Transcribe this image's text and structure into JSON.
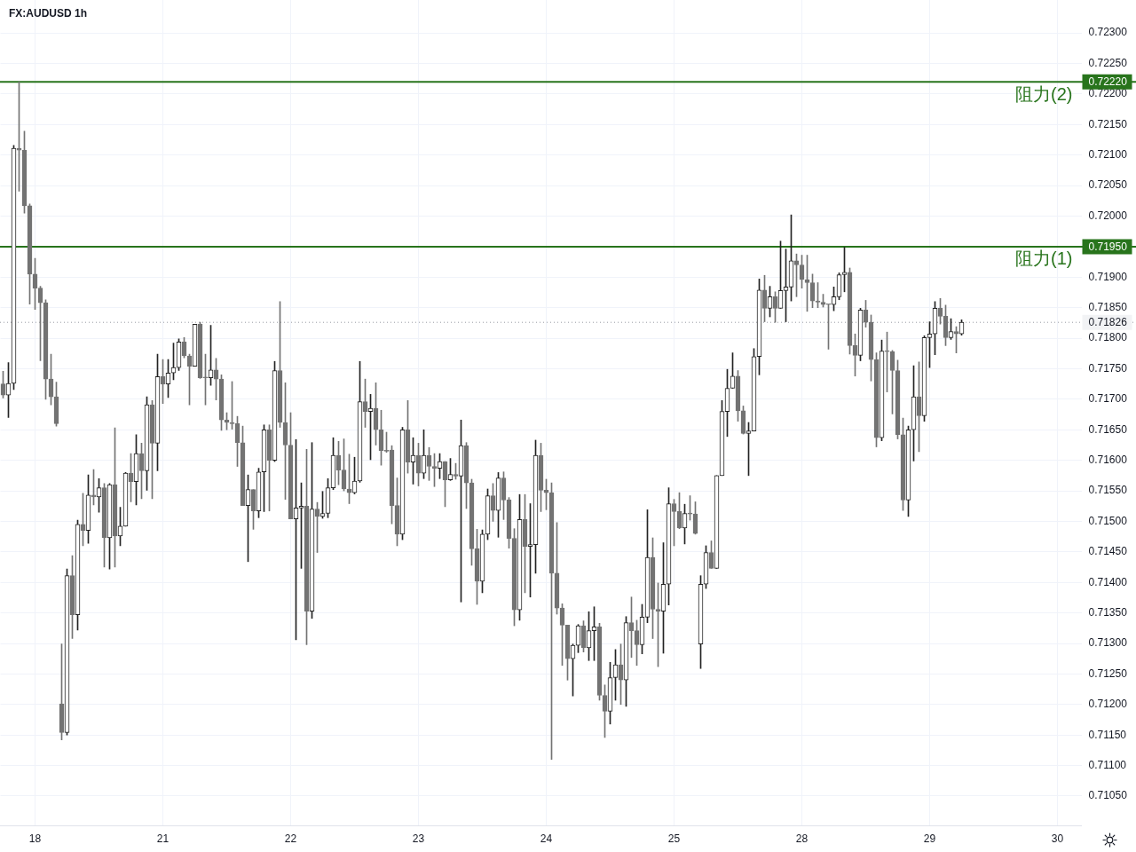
{
  "chart_data": {
    "type": "candlestick",
    "title": "FX:AUDUSD 1h",
    "categories": [
      null,
      null,
      null,
      null,
      null,
      null,
      "18",
      null,
      null,
      null,
      null,
      null,
      null,
      null,
      null,
      null,
      null,
      null,
      null,
      null,
      null,
      null,
      null,
      null,
      null,
      null,
      null,
      null,
      null,
      null,
      "21",
      null,
      null,
      null,
      null,
      null,
      null,
      null,
      null,
      null,
      null,
      null,
      null,
      null,
      null,
      null,
      null,
      null,
      null,
      null,
      null,
      null,
      null,
      null,
      "22",
      null,
      null,
      null,
      null,
      null,
      null,
      null,
      null,
      null,
      null,
      null,
      null,
      null,
      null,
      null,
      null,
      null,
      null,
      null,
      null,
      null,
      null,
      null,
      "23",
      null,
      null,
      null,
      null,
      null,
      null,
      null,
      null,
      null,
      null,
      null,
      null,
      null,
      null,
      null,
      null,
      null,
      null,
      null,
      null,
      null,
      null,
      null,
      "24",
      null,
      null,
      null,
      null,
      null,
      null,
      null,
      null,
      null,
      null,
      null,
      null,
      null,
      null,
      null,
      null,
      null,
      null,
      null,
      null,
      null,
      null,
      null,
      "25",
      null,
      null,
      null,
      null,
      null,
      null,
      null,
      null,
      null,
      null,
      null,
      null,
      null,
      null,
      null,
      null,
      null,
      null,
      null,
      null,
      null,
      null,
      null,
      "28",
      null,
      null,
      null,
      null,
      null,
      null,
      null,
      null,
      null,
      null,
      null,
      null,
      null,
      null,
      null,
      null,
      null,
      null,
      null,
      null,
      null,
      null,
      null,
      "29",
      null,
      null,
      null,
      null,
      null,
      null,
      null,
      null,
      null,
      null,
      null,
      null,
      null,
      null,
      null,
      null,
      null,
      null,
      null,
      null,
      null,
      null,
      null,
      "30",
      null,
      null,
      null,
      null
    ],
    "ohlc": [
      [
        0.71725,
        0.71746,
        0.71702,
        0.71707
      ],
      [
        0.71707,
        0.7176,
        0.7167,
        0.71726
      ],
      [
        0.71726,
        0.72116,
        0.71716,
        0.72111
      ],
      [
        0.72111,
        0.7222,
        0.72041,
        0.72108
      ],
      [
        0.72108,
        0.72139,
        0.72005,
        0.72017
      ],
      [
        0.72017,
        0.7202,
        0.71856,
        0.71905
      ],
      [
        0.71905,
        0.71931,
        0.71847,
        0.71882
      ],
      [
        0.71882,
        0.71885,
        0.71763,
        0.71858
      ],
      [
        0.71858,
        0.71863,
        0.717,
        0.71733
      ],
      [
        0.71733,
        0.71774,
        0.71691,
        0.71704
      ],
      [
        0.71704,
        0.71728,
        0.71656,
        0.7166
      ],
      [
        0.71201,
        0.71299,
        0.71142,
        0.71154
      ],
      [
        0.71154,
        0.71422,
        0.7115,
        0.71411
      ],
      [
        0.71411,
        0.71444,
        0.71308,
        0.71347
      ],
      [
        0.71347,
        0.71502,
        0.71322,
        0.71495
      ],
      [
        0.71495,
        0.71546,
        0.7146,
        0.71485
      ],
      [
        0.71485,
        0.71576,
        0.71464,
        0.71543
      ],
      [
        0.71543,
        0.71585,
        0.71527,
        0.7154
      ],
      [
        0.7154,
        0.7157,
        0.71515,
        0.71555
      ],
      [
        0.71555,
        0.71562,
        0.71425,
        0.71473
      ],
      [
        0.71473,
        0.71562,
        0.71422,
        0.7156
      ],
      [
        0.7156,
        0.71653,
        0.71425,
        0.71476
      ],
      [
        0.71476,
        0.71523,
        0.7146,
        0.71492
      ],
      [
        0.71492,
        0.7158,
        0.71492,
        0.71579
      ],
      [
        0.71579,
        0.71611,
        0.71532,
        0.71565
      ],
      [
        0.71565,
        0.71642,
        0.71527,
        0.71611
      ],
      [
        0.71611,
        0.71628,
        0.71537,
        0.71583
      ],
      [
        0.71583,
        0.71704,
        0.71551,
        0.71691
      ],
      [
        0.71691,
        0.71698,
        0.71537,
        0.71628
      ],
      [
        0.71628,
        0.71774,
        0.71583,
        0.71737
      ],
      [
        0.71737,
        0.71765,
        0.71693,
        0.71725
      ],
      [
        0.71725,
        0.71765,
        0.71703,
        0.71743
      ],
      [
        0.71743,
        0.71792,
        0.71732,
        0.71752
      ],
      [
        0.71752,
        0.71799,
        0.71747,
        0.71794
      ],
      [
        0.71794,
        0.71801,
        0.71768,
        0.71771
      ],
      [
        0.71771,
        0.71774,
        0.71691,
        0.71754
      ],
      [
        0.71754,
        0.71823,
        0.71754,
        0.71823
      ],
      [
        0.71823,
        0.71826,
        0.71734,
        0.71735
      ],
      [
        0.71735,
        0.71774,
        0.71691,
        0.71735
      ],
      [
        0.71735,
        0.71821,
        0.71723,
        0.71748
      ],
      [
        0.71748,
        0.71767,
        0.71699,
        0.71733
      ],
      [
        0.71733,
        0.7174,
        0.71649,
        0.71666
      ],
      [
        0.71666,
        0.71678,
        0.7165,
        0.71662
      ],
      [
        0.71662,
        0.71729,
        0.71651,
        0.7166
      ],
      [
        0.7166,
        0.71672,
        0.7159,
        0.71629
      ],
      [
        0.71629,
        0.71656,
        0.71526,
        0.71526
      ],
      [
        0.71526,
        0.71576,
        0.71434,
        0.71552
      ],
      [
        0.71552,
        0.71552,
        0.71487,
        0.71517
      ],
      [
        0.71517,
        0.71587,
        0.71506,
        0.71581
      ],
      [
        0.71581,
        0.71658,
        0.71516,
        0.7165
      ],
      [
        0.7165,
        0.71658,
        0.71517,
        0.716
      ],
      [
        0.716,
        0.71762,
        0.71598,
        0.71747
      ],
      [
        0.71747,
        0.7186,
        0.71654,
        0.71662
      ],
      [
        0.71662,
        0.71727,
        0.71536,
        0.71625
      ],
      [
        0.71625,
        0.71678,
        0.71504,
        0.71504
      ],
      [
        0.71504,
        0.71634,
        0.71306,
        0.71522
      ],
      [
        0.71522,
        0.71563,
        0.71423,
        0.71525
      ],
      [
        0.71525,
        0.71618,
        0.71298,
        0.71353
      ],
      [
        0.71353,
        0.71629,
        0.71341,
        0.7152
      ],
      [
        0.7152,
        0.71531,
        0.71449,
        0.71508
      ],
      [
        0.71508,
        0.71549,
        0.71505,
        0.71513
      ],
      [
        0.71513,
        0.7157,
        0.71506,
        0.71555
      ],
      [
        0.71555,
        0.71637,
        0.71552,
        0.71608
      ],
      [
        0.71608,
        0.71631,
        0.7156,
        0.71584
      ],
      [
        0.71584,
        0.71635,
        0.7155,
        0.71553
      ],
      [
        0.71553,
        0.7161,
        0.71529,
        0.71547
      ],
      [
        0.71547,
        0.71605,
        0.71545,
        0.71566
      ],
      [
        0.71566,
        0.71762,
        0.71564,
        0.71696
      ],
      [
        0.71696,
        0.71733,
        0.71654,
        0.7168
      ],
      [
        0.7168,
        0.71708,
        0.71601,
        0.71685
      ],
      [
        0.71685,
        0.71727,
        0.71625,
        0.7165
      ],
      [
        0.7165,
        0.71682,
        0.71592,
        0.71616
      ],
      [
        0.71616,
        0.71646,
        0.71613,
        0.71615
      ],
      [
        0.71617,
        0.71624,
        0.71496,
        0.71526
      ],
      [
        0.71526,
        0.71571,
        0.7146,
        0.71479
      ],
      [
        0.71479,
        0.71654,
        0.7147,
        0.7165
      ],
      [
        0.7165,
        0.71698,
        0.71579,
        0.71597
      ],
      [
        0.71597,
        0.71637,
        0.71561,
        0.71608
      ],
      [
        0.71608,
        0.71628,
        0.71558,
        0.71579
      ],
      [
        0.71579,
        0.7165,
        0.7157,
        0.71608
      ],
      [
        0.71608,
        0.71621,
        0.71567,
        0.7159
      ],
      [
        0.7159,
        0.71611,
        0.71557,
        0.71587
      ],
      [
        0.71587,
        0.71611,
        0.7157,
        0.71598
      ],
      [
        0.71598,
        0.71598,
        0.71524,
        0.71568
      ],
      [
        0.71568,
        0.71603,
        0.71567,
        0.71577
      ],
      [
        0.71577,
        0.71595,
        0.71569,
        0.71574
      ],
      [
        0.71574,
        0.71666,
        0.71368,
        0.71624
      ],
      [
        0.71624,
        0.71629,
        0.71521,
        0.71563
      ],
      [
        0.71563,
        0.71569,
        0.71428,
        0.71455
      ],
      [
        0.71455,
        0.71487,
        0.71364,
        0.71402
      ],
      [
        0.71402,
        0.71486,
        0.71383,
        0.71479
      ],
      [
        0.71479,
        0.71553,
        0.7147,
        0.71542
      ],
      [
        0.71542,
        0.71562,
        0.715,
        0.71518
      ],
      [
        0.71518,
        0.7158,
        0.71474,
        0.71571
      ],
      [
        0.71571,
        0.71581,
        0.71503,
        0.71535
      ],
      [
        0.71535,
        0.71539,
        0.71456,
        0.71472
      ],
      [
        0.71472,
        0.71488,
        0.71329,
        0.71355
      ],
      [
        0.71355,
        0.71544,
        0.71338,
        0.71503
      ],
      [
        0.71503,
        0.71544,
        0.71383,
        0.71459
      ],
      [
        0.71459,
        0.71529,
        0.71376,
        0.71462
      ],
      [
        0.71462,
        0.71633,
        0.71415,
        0.71608
      ],
      [
        0.71608,
        0.71628,
        0.71516,
        0.71551
      ],
      [
        0.71551,
        0.71569,
        0.71519,
        0.71547
      ],
      [
        0.71547,
        0.71563,
        0.7111,
        0.71415
      ],
      [
        0.71415,
        0.71498,
        0.71348,
        0.71358
      ],
      [
        0.71358,
        0.71365,
        0.71264,
        0.7133
      ],
      [
        0.7133,
        0.7133,
        0.7124,
        0.71275
      ],
      [
        0.71275,
        0.71299,
        0.71214,
        0.71297
      ],
      [
        0.71297,
        0.71331,
        0.71285,
        0.71329
      ],
      [
        0.71329,
        0.71337,
        0.71286,
        0.71293
      ],
      [
        0.71293,
        0.71352,
        0.71272,
        0.71321
      ],
      [
        0.71321,
        0.7136,
        0.71272,
        0.71327
      ],
      [
        0.71327,
        0.71333,
        0.71207,
        0.71215
      ],
      [
        0.71215,
        0.71232,
        0.71146,
        0.71189
      ],
      [
        0.71189,
        0.71269,
        0.71168,
        0.71244
      ],
      [
        0.71244,
        0.7129,
        0.71207,
        0.71265
      ],
      [
        0.71265,
        0.71299,
        0.712,
        0.7124
      ],
      [
        0.7124,
        0.71344,
        0.71197,
        0.71334
      ],
      [
        0.71334,
        0.71376,
        0.71277,
        0.71321
      ],
      [
        0.71321,
        0.71338,
        0.71264,
        0.71298
      ],
      [
        0.71298,
        0.71364,
        0.71283,
        0.71343
      ],
      [
        0.71343,
        0.71519,
        0.71334,
        0.71441
      ],
      [
        0.71441,
        0.71473,
        0.71308,
        0.71356
      ],
      [
        0.71356,
        0.71399,
        0.71262,
        0.71353
      ],
      [
        0.71353,
        0.71465,
        0.71284,
        0.71397
      ],
      [
        0.71397,
        0.71555,
        0.71363,
        0.71529
      ],
      [
        0.71529,
        0.71536,
        0.7146,
        0.71516
      ],
      [
        0.71516,
        0.71547,
        0.71488,
        0.71489
      ],
      [
        0.71489,
        0.71528,
        0.71463,
        0.71513
      ],
      [
        0.71513,
        0.71542,
        0.71502,
        0.71512
      ],
      [
        0.71512,
        0.71532,
        0.71479,
        0.7148
      ],
      [
        0.71299,
        0.71411,
        0.71259,
        0.71397
      ],
      [
        0.71397,
        0.7146,
        0.7139,
        0.71449
      ],
      [
        0.71449,
        0.71468,
        0.71423,
        0.71423
      ],
      [
        0.71423,
        0.71575,
        0.71423,
        0.71575
      ],
      [
        0.71575,
        0.71698,
        0.71575,
        0.7168
      ],
      [
        0.7168,
        0.71749,
        0.71639,
        0.71718
      ],
      [
        0.71718,
        0.71776,
        0.71718,
        0.71738
      ],
      [
        0.71738,
        0.71747,
        0.71664,
        0.71681
      ],
      [
        0.71681,
        0.71689,
        0.71643,
        0.71644
      ],
      [
        0.71644,
        0.71662,
        0.71575,
        0.71648
      ],
      [
        0.71648,
        0.71783,
        0.71648,
        0.7177
      ],
      [
        0.7177,
        0.71897,
        0.7174,
        0.71879
      ],
      [
        0.71879,
        0.71903,
        0.71827,
        0.71849
      ],
      [
        0.71849,
        0.71885,
        0.71835,
        0.71868
      ],
      [
        0.71868,
        0.71876,
        0.71826,
        0.71849
      ],
      [
        0.71849,
        0.71959,
        0.71849,
        0.71878
      ],
      [
        0.71878,
        0.71946,
        0.71827,
        0.71884
      ],
      [
        0.71884,
        0.72002,
        0.71861,
        0.71927
      ],
      [
        0.71927,
        0.71938,
        0.71868,
        0.7192
      ],
      [
        0.7192,
        0.71936,
        0.71882,
        0.71896
      ],
      [
        0.71896,
        0.71936,
        0.71844,
        0.71891
      ],
      [
        0.71891,
        0.71905,
        0.7185,
        0.71861
      ],
      [
        0.71861,
        0.71891,
        0.7185,
        0.71859
      ],
      [
        0.71859,
        0.71872,
        0.71851,
        0.71855
      ],
      [
        0.71855,
        0.71855,
        0.71782,
        0.71855
      ],
      [
        0.71855,
        0.71884,
        0.71845,
        0.71868
      ],
      [
        0.71868,
        0.71907,
        0.71863,
        0.71904
      ],
      [
        0.71904,
        0.71949,
        0.71876,
        0.71908
      ],
      [
        0.71908,
        0.71915,
        0.71774,
        0.71788
      ],
      [
        0.71788,
        0.71807,
        0.71738,
        0.71772
      ],
      [
        0.71772,
        0.71849,
        0.71763,
        0.71846
      ],
      [
        0.71846,
        0.71862,
        0.71818,
        0.71826
      ],
      [
        0.71826,
        0.71838,
        0.7173,
        0.71765
      ],
      [
        0.71765,
        0.71776,
        0.71622,
        0.71637
      ],
      [
        0.71637,
        0.71797,
        0.71632,
        0.71779
      ],
      [
        0.71779,
        0.7181,
        0.71712,
        0.71778
      ],
      [
        0.71778,
        0.7178,
        0.71676,
        0.71747
      ],
      [
        0.71747,
        0.71764,
        0.71635,
        0.71642
      ],
      [
        0.71642,
        0.71669,
        0.71518,
        0.71535
      ],
      [
        0.71535,
        0.71656,
        0.71508,
        0.7165
      ],
      [
        0.7165,
        0.71755,
        0.71599,
        0.71704
      ],
      [
        0.71704,
        0.71761,
        0.71614,
        0.71673
      ],
      [
        0.71673,
        0.71804,
        0.71664,
        0.71801
      ],
      [
        0.71801,
        0.71827,
        0.71752,
        0.71807
      ],
      [
        0.71807,
        0.7186,
        0.71773,
        0.71849
      ],
      [
        0.71849,
        0.71865,
        0.71823,
        0.71836
      ],
      [
        0.71836,
        0.71854,
        0.71788,
        0.71801
      ],
      [
        0.71801,
        0.71832,
        0.71798,
        0.71811
      ],
      [
        0.71811,
        0.71819,
        0.71776,
        0.71807
      ],
      [
        0.71807,
        0.7183,
        0.71805,
        0.71826
      ],
      null,
      null,
      null,
      null,
      null,
      null,
      null,
      null,
      null,
      null,
      null,
      null,
      null,
      null,
      null,
      null,
      null,
      null,
      null,
      null,
      null,
      null
    ],
    "colors": [
      "#737373",
      "#232323",
      "#232323",
      "#737373",
      "#737373",
      "#737373",
      "#737373",
      "#737373",
      "#737373",
      "#737373",
      "#737373",
      "#737373",
      "#232323",
      "#737373",
      "#232323",
      "#737373",
      "#232323",
      "#737373",
      "#232323",
      "#737373",
      "#232323",
      "#737373",
      "#232323",
      "#232323",
      "#737373",
      "#232323",
      "#737373",
      "#232323",
      "#737373",
      "#232323",
      "#737373",
      "#232323",
      "#232323",
      "#232323",
      "#737373",
      "#737373",
      "#232323",
      "#737373",
      "#737373",
      "#232323",
      "#737373",
      "#737373",
      "#737373",
      "#737373",
      "#737373",
      "#737373",
      "#232323",
      "#737373",
      "#232323",
      "#232323",
      "#737373",
      "#232323",
      "#737373",
      "#737373",
      "#737373",
      "#232323",
      "#232323",
      "#737373",
      "#232323",
      "#737373",
      "#232323",
      "#232323",
      "#232323",
      "#737373",
      "#737373",
      "#737373",
      "#232323",
      "#232323",
      "#737373",
      "#232323",
      "#737373",
      "#737373",
      "#737373",
      "#737373",
      "#737373",
      "#232323",
      "#737373",
      "#232323",
      "#737373",
      "#232323",
      "#737373",
      "#737373",
      "#232323",
      "#737373",
      "#232323",
      "#737373",
      "#232323",
      "#737373",
      "#737373",
      "#737373",
      "#232323",
      "#232323",
      "#737373",
      "#232323",
      "#737373",
      "#737373",
      "#737373",
      "#232323",
      "#737373",
      "#232323",
      "#232323",
      "#737373",
      "#737373",
      "#737373",
      "#737373",
      "#737373",
      "#737373",
      "#232323",
      "#232323",
      "#737373",
      "#232323",
      "#232323",
      "#737373",
      "#737373",
      "#232323",
      "#232323",
      "#737373",
      "#232323",
      "#737373",
      "#737373",
      "#232323",
      "#232323",
      "#737373",
      "#737373",
      "#232323",
      "#232323",
      "#737373",
      "#737373",
      "#232323",
      "#737373",
      "#737373",
      "#232323",
      "#232323",
      "#737373",
      "#232323",
      "#232323",
      "#232323",
      "#232323",
      "#737373",
      "#737373",
      "#232323",
      "#232323",
      "#232323",
      "#737373",
      "#232323",
      "#737373",
      "#232323",
      "#232323",
      "#232323",
      "#737373",
      "#737373",
      "#737373",
      "#737373",
      "#737373",
      "#737373",
      "#737373",
      "#232323",
      "#232323",
      "#232323",
      "#737373",
      "#737373",
      "#232323",
      "#737373",
      "#737373",
      "#737373",
      "#232323",
      "#737373",
      "#737373",
      "#737373",
      "#737373",
      "#232323",
      "#232323",
      "#737373",
      "#232323",
      "#232323",
      "#232323",
      "#737373",
      "#737373",
      "#232323",
      "#737373",
      "#232323",
      null,
      null,
      null,
      null,
      null,
      null,
      null,
      null,
      null,
      null,
      null,
      null,
      null,
      null,
      null,
      null,
      null,
      null,
      null,
      null,
      null,
      null
    ],
    "ylim": [
      0.71002,
      0.72354
    ],
    "yticks": [
      {
        "value": 0.7105,
        "label": "0.71050"
      },
      {
        "value": 0.711,
        "label": "0.71100"
      },
      {
        "value": 0.7115,
        "label": "0.71150"
      },
      {
        "value": 0.712,
        "label": "0.71200"
      },
      {
        "value": 0.7125,
        "label": "0.71250"
      },
      {
        "value": 0.713,
        "label": "0.71300"
      },
      {
        "value": 0.7135,
        "label": "0.71350"
      },
      {
        "value": 0.714,
        "label": "0.71400"
      },
      {
        "value": 0.7145,
        "label": "0.71450"
      },
      {
        "value": 0.715,
        "label": "0.71500"
      },
      {
        "value": 0.7155,
        "label": "0.71550"
      },
      {
        "value": 0.716,
        "label": "0.71600"
      },
      {
        "value": 0.7165,
        "label": "0.71650"
      },
      {
        "value": 0.717,
        "label": "0.71700"
      },
      {
        "value": 0.7175,
        "label": "0.71750"
      },
      {
        "value": 0.718,
        "label": "0.71800"
      },
      {
        "value": 0.7185,
        "label": "0.71850"
      },
      {
        "value": 0.719,
        "label": "0.71900"
      },
      {
        "value": 0.72,
        "label": "0.72000"
      },
      {
        "value": 0.7205,
        "label": "0.72050"
      },
      {
        "value": 0.721,
        "label": "0.72100"
      },
      {
        "value": 0.7215,
        "label": "0.72150"
      },
      {
        "value": 0.722,
        "label": "0.72200"
      },
      {
        "value": 0.7225,
        "label": "0.72250"
      },
      {
        "value": 0.723,
        "label": "0.72300"
      }
    ],
    "grid": true,
    "ref_lines": [
      {
        "axis": "y",
        "value": 0.7222,
        "label": "阻力(2)",
        "color": "#28741c"
      },
      {
        "axis": "y",
        "value": 0.7195,
        "label": "阻力(1)",
        "color": "#28741c"
      },
      {
        "axis": "y",
        "value": 0.71826,
        "color": "#9598a1",
        "line_style": "dotted"
      }
    ],
    "annotations": [
      {
        "text": "0.72220",
        "y": 0.7222
      },
      {
        "text": "0.71950",
        "y": 0.7195
      },
      {
        "text": "0.71826",
        "y": 0.71826
      }
    ]
  }
}
